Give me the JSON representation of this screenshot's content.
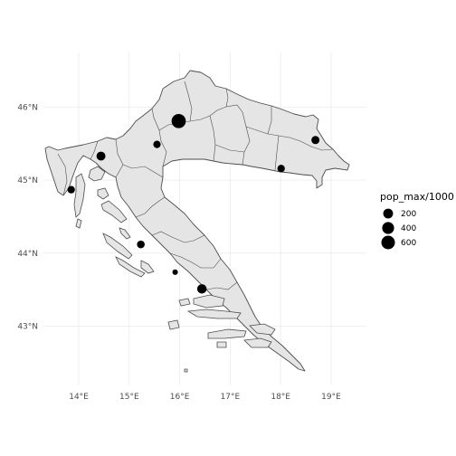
{
  "chart_data": {
    "type": "scatter",
    "subtype": "map",
    "title": "",
    "xlabel": "",
    "ylabel": "",
    "xlim": [
      13.3,
      19.7
    ],
    "ylim": [
      42.2,
      46.75
    ],
    "x_ticks": [
      {
        "value": 14,
        "label": "14°E"
      },
      {
        "value": 15,
        "label": "15°E"
      },
      {
        "value": 16,
        "label": "16°E"
      },
      {
        "value": 17,
        "label": "17°E"
      },
      {
        "value": 18,
        "label": "18°E"
      },
      {
        "value": 19,
        "label": "19°E"
      }
    ],
    "y_ticks": [
      {
        "value": 43,
        "label": "43°N"
      },
      {
        "value": 44,
        "label": "44°N"
      },
      {
        "value": 45,
        "label": "45°N"
      },
      {
        "value": 46,
        "label": "46°N"
      }
    ],
    "grid": true,
    "background": "#ffffff",
    "region_fill": "#e5e5e5",
    "border_color": "#4d4d4d",
    "point_color": "#000000",
    "legend": {
      "title": "pop_max/1000",
      "position": "right",
      "entries": [
        {
          "label": "200",
          "value": 200
        },
        {
          "label": "400",
          "value": 400
        },
        {
          "label": "600",
          "value": 600
        }
      ]
    },
    "points": [
      {
        "lon": 15.98,
        "lat": 45.81,
        "pop_max_k": 690
      },
      {
        "lon": 14.44,
        "lat": 45.33,
        "pop_max_k": 140
      },
      {
        "lon": 16.44,
        "lat": 43.51,
        "pop_max_k": 170
      },
      {
        "lon": 18.69,
        "lat": 45.55,
        "pop_max_k": 90
      },
      {
        "lon": 15.55,
        "lat": 45.49,
        "pop_max_k": 55
      },
      {
        "lon": 18.01,
        "lat": 45.16,
        "pop_max_k": 60
      },
      {
        "lon": 15.23,
        "lat": 44.12,
        "pop_max_k": 70
      },
      {
        "lon": 13.85,
        "lat": 44.87,
        "pop_max_k": 60
      },
      {
        "lon": 15.91,
        "lat": 43.74,
        "pop_max_k": 5
      }
    ]
  }
}
